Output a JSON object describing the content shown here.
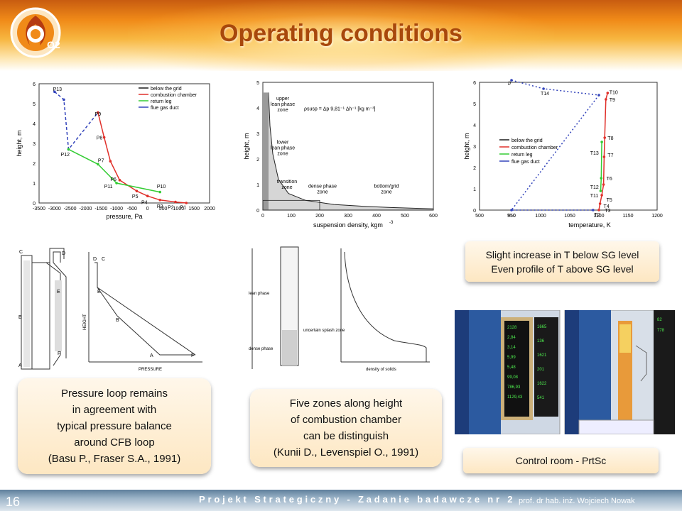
{
  "slide": {
    "title": "Operating conditions",
    "page_number": "16",
    "footer_project": "Projekt Strategiczny - Zadanie badawcze nr 2",
    "footer_author": "prof. dr hab. inż. Wojciech Nowak",
    "logo_text": "O2"
  },
  "notes": {
    "pressure": [
      "Pressure loop remains",
      "in agreement with",
      "typical pressure balance",
      "around CFB loop",
      "(Basu P., Fraser S.A., 1991)"
    ],
    "zones": [
      "Five zones along height",
      "of combustion chamber",
      "can be distinguish",
      "(Kunii D., Levenspiel O., 1991)"
    ],
    "temperature": [
      "Slight increase in T below SG level",
      "Even profile of T above SG level"
    ],
    "control": [
      "Control room - PrtSc"
    ]
  },
  "legend": [
    "below the grid",
    "combustion chamber",
    "return leg",
    "flue gas duct"
  ],
  "colors": {
    "below_grid": "#1a1a1a",
    "combustion": "#e0302a",
    "return_leg": "#33cc33",
    "flue_gas": "#3344bb"
  },
  "chart_data": [
    {
      "type": "line",
      "xlabel": "pressure, Pa",
      "ylabel": "height, m",
      "xticks": [
        "-3500",
        "-3000",
        "-2500",
        "-2000",
        "-1500",
        "-1000",
        "-500",
        "0",
        "500",
        "1000",
        "1500",
        "2000"
      ],
      "yticks": [
        "0",
        "1",
        "2",
        "3",
        "4",
        "5",
        "6"
      ],
      "xlim": [
        -3500,
        2000
      ],
      "ylim": [
        0,
        6
      ],
      "series": [
        {
          "name": "flue gas duct",
          "points": [
            [
              -3000,
              5.6
            ],
            [
              -2700,
              5.2
            ],
            [
              -2550,
              2.7
            ],
            [
              -1600,
              4.55
            ]
          ]
        },
        {
          "name": "combustion chamber",
          "points": [
            [
              -1600,
              4.55
            ],
            [
              -1400,
              3.3
            ],
            [
              -1200,
              2.1
            ],
            [
              -900,
              1.15
            ],
            [
              -350,
              0.6
            ],
            [
              0,
              0.35
            ],
            [
              400,
              0.15
            ],
            [
              900,
              0.05
            ],
            [
              1250,
              0.0
            ]
          ]
        },
        {
          "name": "return leg",
          "points": [
            [
              -2550,
              2.7
            ],
            [
              -1600,
              1.95
            ],
            [
              -1000,
              1.0
            ],
            [
              400,
              0.55
            ]
          ]
        }
      ],
      "labels": [
        "P13",
        "P9",
        "P8",
        "P7",
        "P12",
        "P6",
        "P11",
        "P10",
        "P5",
        "P4",
        "P3",
        "P2",
        "P1"
      ]
    },
    {
      "type": "area",
      "xlabel": "suspension density, kgm",
      "xlabel_sup": "-3",
      "ylabel": "height, m",
      "xticks": [
        "0",
        "100",
        "200",
        "300",
        "400",
        "500",
        "600"
      ],
      "yticks": [
        "0",
        "1",
        "2",
        "3",
        "4",
        "5"
      ],
      "xlim": [
        0,
        600
      ],
      "ylim": [
        0,
        5
      ],
      "formula": "ρsusp = Δp 9,81⁻¹ Δh⁻¹ [kg m⁻³]",
      "zones": [
        "upper lean phase zone",
        "lower lean phase zone",
        "transition zone",
        "dense phase zone",
        "bottom/grid zone"
      ],
      "series": [
        {
          "points": [
            [
              20,
              4.6
            ],
            [
              25,
              3.3
            ],
            [
              35,
              2.2
            ],
            [
              55,
              1.2
            ],
            [
              90,
              0.65
            ],
            [
              150,
              0.38
            ],
            [
              250,
              0.22
            ],
            [
              350,
              0.15
            ],
            [
              450,
              0.1
            ],
            [
              600,
              0.05
            ]
          ]
        }
      ]
    },
    {
      "type": "line",
      "xlabel": "temperature, K",
      "ylabel": "height, m",
      "xticks": [
        "500",
        "550",
        "950",
        "1000",
        "1050",
        "1100",
        "1150",
        "1200"
      ],
      "yticks": [
        "0",
        "1",
        "2",
        "3",
        "4",
        "5",
        "6"
      ],
      "ylim": [
        0,
        6
      ],
      "series": [
        {
          "name": "flue gas duct",
          "points": [
            [
              550,
              6.1
            ],
            [
              1005,
              5.7
            ],
            [
              1100,
              5.4
            ],
            [
              550,
              0.0
            ],
            [
              1090,
              0.0
            ]
          ]
        },
        {
          "name": "combustion chamber",
          "points": [
            [
              1100,
              0.0
            ],
            [
              1102,
              0.3
            ],
            [
              1105,
              0.7
            ],
            [
              1108,
              1.2
            ],
            [
              1109,
              2.5
            ],
            [
              1110,
              3.4
            ],
            [
              1112,
              5.2
            ],
            [
              1115,
              5.5
            ]
          ]
        },
        {
          "name": "return leg",
          "points": [
            [
              1105,
              3.2
            ],
            [
              1104,
              1.5
            ],
            [
              1103,
              0.9
            ]
          ]
        }
      ],
      "labels": [
        "T15",
        "T14",
        "T10",
        "T9",
        "T8",
        "T13",
        "T7",
        "T6",
        "T12",
        "T11",
        "T5",
        "T4",
        "T3",
        "T2",
        "T1"
      ]
    }
  ],
  "pressure_diagram": {
    "points": [
      "C",
      "D",
      "E",
      "B",
      "F",
      "A"
    ],
    "ylabel": "HEIGHT",
    "xlabel": "PRESSURE",
    "curve_points": [
      "D",
      "C",
      "E",
      "B",
      "A",
      "F"
    ]
  },
  "zones_diagram": {
    "labels": [
      "lean phase",
      "uncertain splash zone",
      "dense phase"
    ],
    "xlabel": "density of solids"
  },
  "control_room": {
    "left_values": [
      "2128",
      "2,84",
      "3,14",
      "5,99",
      "5,48",
      "99,08",
      "786,93",
      "1129,43",
      "1665",
      "136",
      "1621",
      "201",
      "1622",
      "541"
    ],
    "right_values": [
      "778",
      "82"
    ]
  }
}
